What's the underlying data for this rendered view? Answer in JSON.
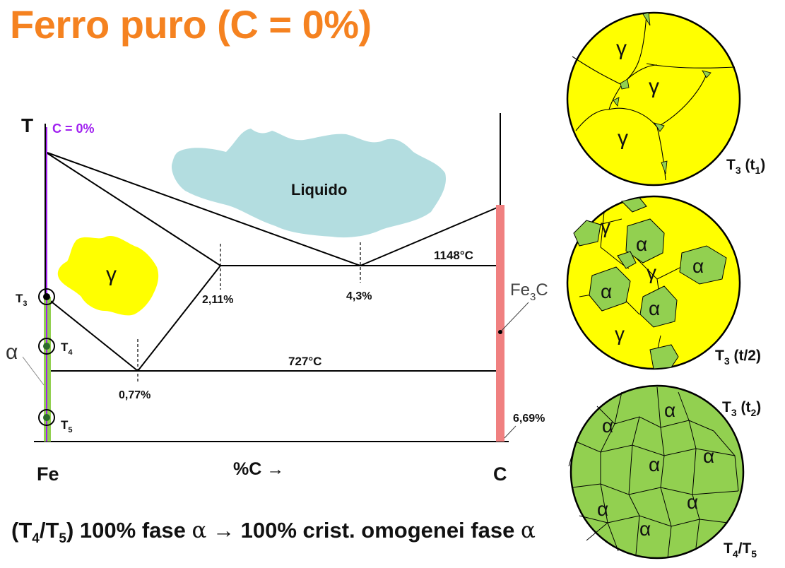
{
  "title": "Ferro puro (C = 0%)",
  "diagram": {
    "axis_t": "T",
    "axis_fe": "Fe",
    "axis_c": "C",
    "axis_x": "%C →",
    "composition_line_label": "C = 0%",
    "region_liquid": "Liquido",
    "region_gamma": "γ",
    "temp_eutectic": "1148°C",
    "temp_eutectoid": "727°C",
    "comp_211": "2,11%",
    "comp_43": "4,3%",
    "comp_077": "0,77%",
    "comp_669": "6,69%",
    "fe3c_label": "Fe3C",
    "point_t3": "T3",
    "point_t4": "T4",
    "point_t5": "T5",
    "alpha_label": "α"
  },
  "micrographs": [
    {
      "label": "T3 (t1)",
      "grains": [
        "γ",
        "γ",
        "γ"
      ]
    },
    {
      "label": "T3 (t/2)",
      "grains": [
        "γ",
        "α",
        "α",
        "γ",
        "α",
        "α",
        "γ"
      ]
    },
    {
      "label": "T3 (t2)",
      "label2": "T4/T5",
      "grains": [
        "α",
        "α",
        "α",
        "α",
        "α",
        "α",
        "α",
        "α"
      ]
    }
  ],
  "caption": {
    "prefix": "(T4/T5) 100% fase α",
    "arrow": "→",
    "suffix": "100% crist. omogenei fase α"
  },
  "colors": {
    "title": "#f58220",
    "liquid": "#b3dde0",
    "gamma": "#ffff00",
    "alpha": "#92d050",
    "fe3c_bar": "#f08080",
    "purple_line": "#a020f0"
  }
}
